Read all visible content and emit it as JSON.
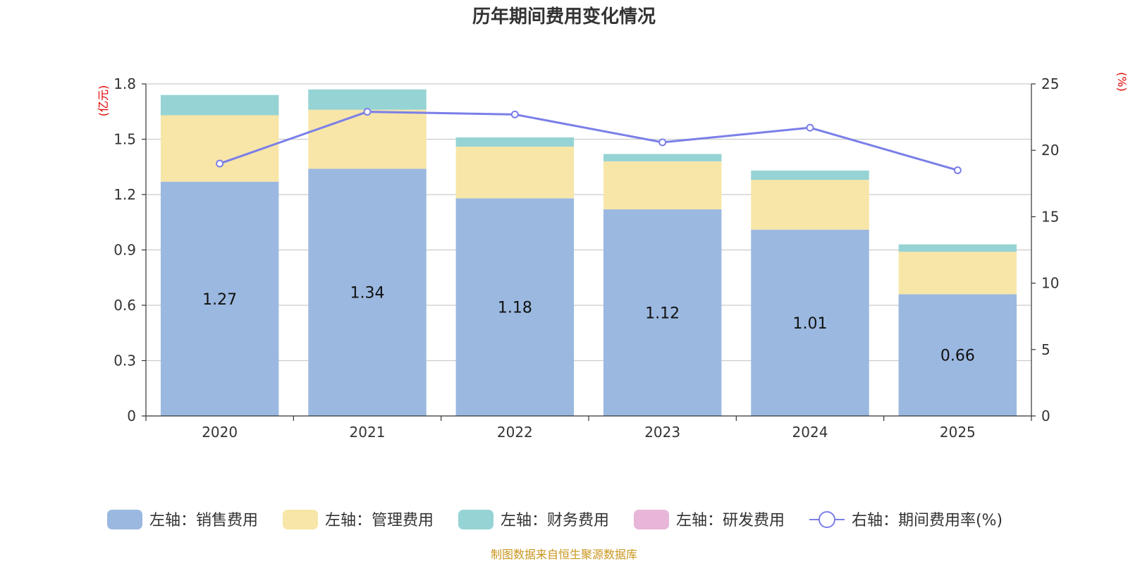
{
  "chart_data": {
    "type": "bar",
    "title": "历年期间费用变化情况",
    "categories": [
      "2020",
      "2021",
      "2022",
      "2023",
      "2024",
      "2025"
    ],
    "left_axis": {
      "unit": "(亿元)",
      "ylim": [
        0,
        1.8
      ],
      "ticks": [
        "0",
        "0.3",
        "0.6",
        "0.9",
        "1.2",
        "1.5",
        "1.8"
      ]
    },
    "right_axis": {
      "unit": "(%)",
      "ylim": [
        0,
        25
      ],
      "ticks": [
        "0",
        "5",
        "10",
        "15",
        "20",
        "25"
      ]
    },
    "series": [
      {
        "name": "左轴：销售费用",
        "type": "bar",
        "axis": "left",
        "color": "#9BB8E0",
        "values": [
          1.27,
          1.34,
          1.18,
          1.12,
          1.01,
          0.66
        ],
        "labels": [
          "1.27",
          "1.34",
          "1.18",
          "1.12",
          "1.01",
          "0.66"
        ]
      },
      {
        "name": "左轴：管理费用",
        "type": "bar",
        "axis": "left",
        "color": "#F7E6A8",
        "values": [
          0.36,
          0.32,
          0.28,
          0.26,
          0.27,
          0.23
        ]
      },
      {
        "name": "左轴：财务费用",
        "type": "bar",
        "axis": "left",
        "color": "#96D3D4",
        "values": [
          0.11,
          0.11,
          0.05,
          0.04,
          0.05,
          0.04
        ]
      },
      {
        "name": "左轴：研发费用",
        "type": "bar",
        "axis": "left",
        "color": "#E8B6D8",
        "values": [
          0,
          0,
          0,
          0,
          0,
          0
        ]
      },
      {
        "name": "右轴：期间费用率(%)",
        "type": "line",
        "axis": "right",
        "color": "#7B7FE8",
        "values": [
          19.0,
          22.9,
          22.7,
          20.6,
          21.7,
          18.5
        ]
      }
    ],
    "grid": true,
    "legend": "bottom"
  },
  "source": "制图数据来自恒生聚源数据库",
  "colors": {
    "axis_unit": "#E00000",
    "source": "#C8961E",
    "grid": "#CCCCCC",
    "axis": "#333333"
  }
}
